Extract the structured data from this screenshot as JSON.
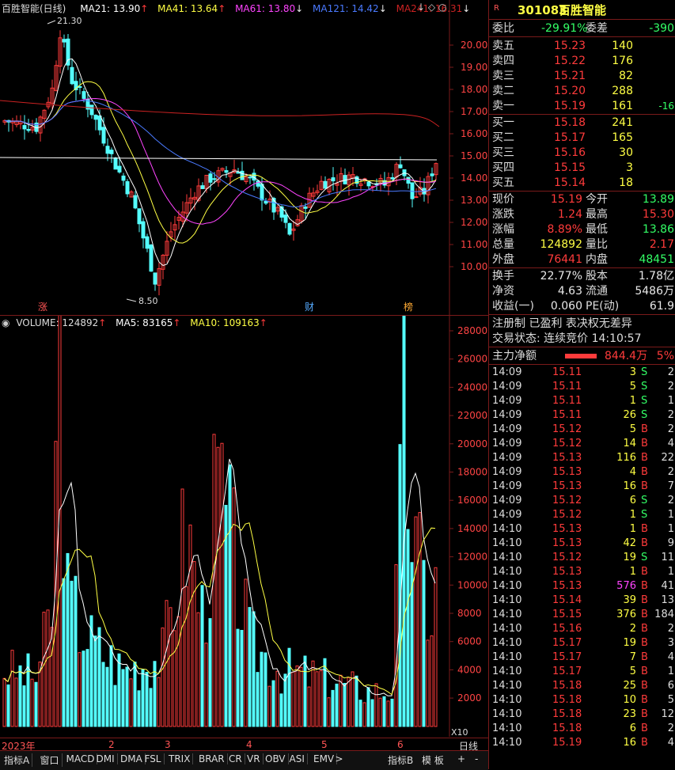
{
  "kline_header": {
    "name": "百胜智能(日线)",
    "ma21": "MA21: 13.90",
    "ma41": "MA41: 13.64",
    "ma61": "MA61: 13.80",
    "ma121": "MA121: 14.42",
    "ma241": "MA241: 16.31"
  },
  "kline": {
    "price_ticks": [
      "20.00",
      "19.00",
      "18.00",
      "17.00",
      "16.00",
      "15.00",
      "14.00",
      "13.00",
      "12.00",
      "11.00",
      "10.00"
    ],
    "high_label": "21.30",
    "low_label": "8.50",
    "markers": [
      "涨",
      "财",
      "榜"
    ]
  },
  "volume_header": {
    "volume": "VOLUME: 124892",
    "ma5": "MA5: 83165",
    "ma10": "MA10: 109163"
  },
  "volume": {
    "ticks": [
      "28000",
      "26000",
      "24000",
      "22000",
      "20000",
      "18000",
      "16000",
      "14000",
      "12000",
      "10000",
      "8000",
      "6000",
      "4000",
      "2000"
    ],
    "unit": "X10"
  },
  "date_axis": {
    "labels": [
      "2023年",
      "2",
      "3",
      "4",
      "5",
      "6"
    ],
    "period": "日线"
  },
  "bottom_tabs": [
    "指标A",
    "窗口",
    "MACD",
    "DMI",
    "DMA",
    "FSL",
    "TRIX",
    "BRAR",
    "CR",
    "VR",
    "OBV",
    "ASI",
    "EMV"
  ],
  "bottom_right": {
    "tab_b": "指标B",
    "template": "模 板",
    "plus": "+",
    "minus": "-"
  },
  "stock": {
    "badge": "R",
    "code": "301083",
    "name": "百胜智能"
  },
  "order_book": {
    "weibi_label": "委比",
    "weibi": "-29.91%",
    "weicha_label": "委差",
    "weicha": "-390",
    "sells": [
      {
        "label": "卖五",
        "price": "15.23",
        "vol": "140",
        "chg": ""
      },
      {
        "label": "卖四",
        "price": "15.22",
        "vol": "176",
        "chg": ""
      },
      {
        "label": "卖三",
        "price": "15.21",
        "vol": "82",
        "chg": ""
      },
      {
        "label": "卖二",
        "price": "15.20",
        "vol": "288",
        "chg": ""
      },
      {
        "label": "卖一",
        "price": "15.19",
        "vol": "161",
        "chg": "-16"
      }
    ],
    "buys": [
      {
        "label": "买一",
        "price": "15.18",
        "vol": "241"
      },
      {
        "label": "买二",
        "price": "15.17",
        "vol": "165"
      },
      {
        "label": "买三",
        "price": "15.16",
        "vol": "30"
      },
      {
        "label": "买四",
        "price": "15.15",
        "vol": "3"
      },
      {
        "label": "买五",
        "price": "15.14",
        "vol": "18"
      }
    ]
  },
  "quote": [
    {
      "l": "现价",
      "v": "15.19",
      "l2": "今开",
      "v2": "13.89"
    },
    {
      "l": "涨跌",
      "v": "1.24",
      "l2": "最高",
      "v2": "15.30"
    },
    {
      "l": "涨幅",
      "v": "8.89%",
      "l2": "最低",
      "v2": "13.86"
    },
    {
      "l": "总量",
      "v": "124892",
      "l2": "量比",
      "v2": "2.17"
    },
    {
      "l": "外盘",
      "v": "76441",
      "l2": "内盘",
      "v2": "48451"
    }
  ],
  "fundamentals": [
    {
      "l": "换手",
      "v": "22.77%",
      "l2": "股本",
      "v2": "1.78亿"
    },
    {
      "l": "净资",
      "v": "4.63",
      "l2": "流通",
      "v2": "5486万"
    },
    {
      "l": "收益(一)",
      "v": "0.060",
      "l2": "PE(动)",
      "v2": "61.9"
    }
  ],
  "status": {
    "tags": "注册制 已盈利 表决权无差异",
    "trade_state": "交易状态: 连续竞价 14:10:57",
    "main_label": "主力净额",
    "main_value": "844.4万",
    "main_pct": "5%"
  },
  "ticks": [
    {
      "t": "14:09",
      "p": "15.11",
      "v": "3",
      "s": "S",
      "n": "2"
    },
    {
      "t": "14:09",
      "p": "15.11",
      "v": "5",
      "s": "S",
      "n": "2"
    },
    {
      "t": "14:09",
      "p": "15.11",
      "v": "1",
      "s": "S",
      "n": "1"
    },
    {
      "t": "14:09",
      "p": "15.11",
      "v": "26",
      "s": "S",
      "n": "2"
    },
    {
      "t": "14:09",
      "p": "15.12",
      "v": "5",
      "s": "B",
      "n": "2"
    },
    {
      "t": "14:09",
      "p": "15.12",
      "v": "14",
      "s": "B",
      "n": "4"
    },
    {
      "t": "14:09",
      "p": "15.13",
      "v": "116",
      "s": "B",
      "n": "22"
    },
    {
      "t": "14:09",
      "p": "15.13",
      "v": "4",
      "s": "B",
      "n": "2"
    },
    {
      "t": "14:09",
      "p": "15.13",
      "v": "16",
      "s": "B",
      "n": "7"
    },
    {
      "t": "14:09",
      "p": "15.12",
      "v": "6",
      "s": "S",
      "n": "2"
    },
    {
      "t": "14:09",
      "p": "15.12",
      "v": "1",
      "s": "S",
      "n": "1"
    },
    {
      "t": "14:10",
      "p": "15.13",
      "v": "1",
      "s": "B",
      "n": "1"
    },
    {
      "t": "14:10",
      "p": "15.13",
      "v": "42",
      "s": "B",
      "n": "9"
    },
    {
      "t": "14:10",
      "p": "15.12",
      "v": "19",
      "s": "S",
      "n": "11"
    },
    {
      "t": "14:10",
      "p": "15.13",
      "v": "1",
      "s": "B",
      "n": "1"
    },
    {
      "t": "14:10",
      "p": "15.13",
      "v": "576",
      "s": "B",
      "n": "41"
    },
    {
      "t": "14:10",
      "p": "15.14",
      "v": "39",
      "s": "B",
      "n": "13"
    },
    {
      "t": "14:10",
      "p": "15.15",
      "v": "376",
      "s": "B",
      "n": "184"
    },
    {
      "t": "14:10",
      "p": "15.16",
      "v": "2",
      "s": "B",
      "n": "2"
    },
    {
      "t": "14:10",
      "p": "15.17",
      "v": "19",
      "s": "B",
      "n": "3"
    },
    {
      "t": "14:10",
      "p": "15.17",
      "v": "7",
      "s": "B",
      "n": "4"
    },
    {
      "t": "14:10",
      "p": "15.17",
      "v": "5",
      "s": "B",
      "n": "1"
    },
    {
      "t": "14:10",
      "p": "15.18",
      "v": "25",
      "s": "B",
      "n": "6"
    },
    {
      "t": "14:10",
      "p": "15.18",
      "v": "10",
      "s": "B",
      "n": "5"
    },
    {
      "t": "14:10",
      "p": "15.18",
      "v": "23",
      "s": "B",
      "n": "12"
    },
    {
      "t": "14:10",
      "p": "15.18",
      "v": "6",
      "s": "B",
      "n": "2"
    },
    {
      "t": "14:10",
      "p": "15.19",
      "v": "16",
      "s": "B",
      "n": "4"
    }
  ],
  "colors": {
    "up": "#ff3b3b",
    "down": "#54ffff",
    "grid": "#7a1a1a",
    "ma21": "#ffffff",
    "ma41": "#ffff44",
    "ma61": "#ff44ff",
    "ma121": "#4a7aff",
    "ma241": "#cc2222"
  }
}
